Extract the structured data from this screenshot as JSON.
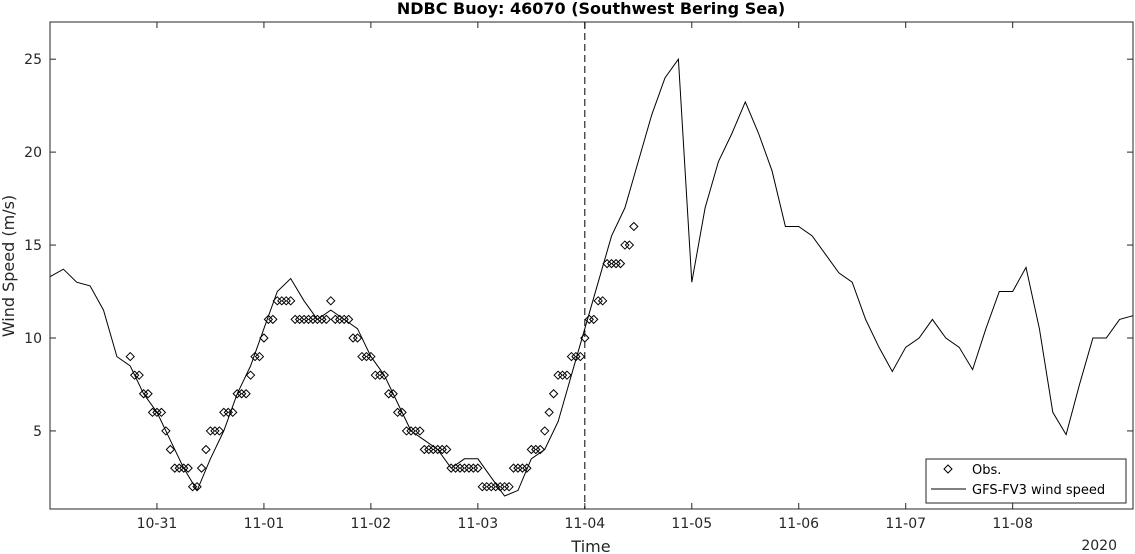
{
  "chart_data": {
    "type": "line",
    "title": "NDBC Buoy: 46070 (Southwest Bering Sea)",
    "xlabel": "Time",
    "ylabel": "Wind Speed (m/s)",
    "year_label": "2020",
    "xlim": [
      "2020-10-30 00:00",
      "2020-11-09 03:00"
    ],
    "ylim": [
      0.8,
      27
    ],
    "x_ticks": [
      "10-31",
      "11-01",
      "11-02",
      "11-03",
      "11-04",
      "11-05",
      "11-06",
      "11-07",
      "11-08"
    ],
    "y_ticks": [
      5,
      10,
      15,
      20,
      25
    ],
    "grid": false,
    "legend_position": "bottom-right",
    "vline": {
      "x": "2020-11-04 00:00",
      "style": "dashed"
    },
    "series": [
      {
        "name": "Obs.",
        "style": "open-diamond-markers",
        "color": "#000000",
        "x": [
          "2020-10-30 18:00",
          "2020-10-30 19:00",
          "2020-10-30 20:00",
          "2020-10-30 21:00",
          "2020-10-30 22:00",
          "2020-10-30 23:00",
          "2020-10-31 00:00",
          "2020-10-31 01:00",
          "2020-10-31 02:00",
          "2020-10-31 03:00",
          "2020-10-31 04:00",
          "2020-10-31 05:00",
          "2020-10-31 06:00",
          "2020-10-31 07:00",
          "2020-10-31 08:00",
          "2020-10-31 09:00",
          "2020-10-31 10:00",
          "2020-10-31 11:00",
          "2020-10-31 12:00",
          "2020-10-31 13:00",
          "2020-10-31 14:00",
          "2020-10-31 15:00",
          "2020-10-31 16:00",
          "2020-10-31 17:00",
          "2020-10-31 18:00",
          "2020-10-31 19:00",
          "2020-10-31 20:00",
          "2020-10-31 21:00",
          "2020-10-31 22:00",
          "2020-10-31 23:00",
          "2020-11-01 00:00",
          "2020-11-01 01:00",
          "2020-11-01 02:00",
          "2020-11-01 03:00",
          "2020-11-01 04:00",
          "2020-11-01 05:00",
          "2020-11-01 06:00",
          "2020-11-01 07:00",
          "2020-11-01 08:00",
          "2020-11-01 09:00",
          "2020-11-01 10:00",
          "2020-11-01 11:00",
          "2020-11-01 12:00",
          "2020-11-01 13:00",
          "2020-11-01 14:00",
          "2020-11-01 15:00",
          "2020-11-01 16:00",
          "2020-11-01 17:00",
          "2020-11-01 18:00",
          "2020-11-01 19:00",
          "2020-11-01 20:00",
          "2020-11-01 21:00",
          "2020-11-01 22:00",
          "2020-11-01 23:00",
          "2020-11-02 00:00",
          "2020-11-02 01:00",
          "2020-11-02 02:00",
          "2020-11-02 03:00",
          "2020-11-02 04:00",
          "2020-11-02 05:00",
          "2020-11-02 06:00",
          "2020-11-02 07:00",
          "2020-11-02 08:00",
          "2020-11-02 09:00",
          "2020-11-02 10:00",
          "2020-11-02 11:00",
          "2020-11-02 12:00",
          "2020-11-02 13:00",
          "2020-11-02 14:00",
          "2020-11-02 15:00",
          "2020-11-02 16:00",
          "2020-11-02 17:00",
          "2020-11-02 18:00",
          "2020-11-02 19:00",
          "2020-11-02 20:00",
          "2020-11-02 21:00",
          "2020-11-02 22:00",
          "2020-11-02 23:00",
          "2020-11-03 00:00",
          "2020-11-03 01:00",
          "2020-11-03 02:00",
          "2020-11-03 03:00",
          "2020-11-03 04:00",
          "2020-11-03 05:00",
          "2020-11-03 06:00",
          "2020-11-03 07:00",
          "2020-11-03 08:00",
          "2020-11-03 09:00",
          "2020-11-03 10:00",
          "2020-11-03 11:00",
          "2020-11-03 12:00",
          "2020-11-03 13:00",
          "2020-11-03 14:00",
          "2020-11-03 15:00",
          "2020-11-03 16:00",
          "2020-11-03 17:00",
          "2020-11-03 18:00",
          "2020-11-03 19:00",
          "2020-11-03 20:00",
          "2020-11-03 21:00",
          "2020-11-03 22:00",
          "2020-11-03 23:00",
          "2020-11-04 00:00",
          "2020-11-04 01:00",
          "2020-11-04 02:00",
          "2020-11-04 03:00",
          "2020-11-04 04:00",
          "2020-11-04 05:00",
          "2020-11-04 06:00",
          "2020-11-04 07:00",
          "2020-11-04 08:00",
          "2020-11-04 09:00",
          "2020-11-04 10:00",
          "2020-11-04 11:00"
        ],
        "y": [
          9,
          8,
          8,
          7,
          7,
          6,
          6,
          6,
          5,
          4,
          3,
          3,
          3,
          3,
          2,
          2,
          3,
          4,
          5,
          5,
          5,
          6,
          6,
          6,
          7,
          7,
          7,
          8,
          9,
          9,
          10,
          11,
          11,
          12,
          12,
          12,
          12,
          11,
          11,
          11,
          11,
          11,
          11,
          11,
          11,
          12,
          11,
          11,
          11,
          11,
          10,
          10,
          9,
          9,
          9,
          8,
          8,
          8,
          7,
          7,
          6,
          6,
          5,
          5,
          5,
          5,
          4,
          4,
          4,
          4,
          4,
          4,
          3,
          3,
          3,
          3,
          3,
          3,
          3,
          2,
          2,
          2,
          2,
          2,
          2,
          2,
          3,
          3,
          3,
          3,
          4,
          4,
          4,
          5,
          6,
          7,
          8,
          8,
          8,
          9,
          9,
          9,
          10,
          11,
          11,
          12,
          12,
          14,
          14,
          14,
          14,
          15,
          15,
          16
        ]
      },
      {
        "name": "GFS-FV3 wind speed",
        "style": "line",
        "color": "#000000",
        "x": [
          "2020-10-30 00:00",
          "2020-10-30 03:00",
          "2020-10-30 06:00",
          "2020-10-30 09:00",
          "2020-10-30 12:00",
          "2020-10-30 15:00",
          "2020-10-30 18:00",
          "2020-10-30 21:00",
          "2020-10-31 00:00",
          "2020-10-31 03:00",
          "2020-10-31 06:00",
          "2020-10-31 09:00",
          "2020-10-31 12:00",
          "2020-10-31 15:00",
          "2020-10-31 18:00",
          "2020-10-31 21:00",
          "2020-11-01 00:00",
          "2020-11-01 03:00",
          "2020-11-01 06:00",
          "2020-11-01 09:00",
          "2020-11-01 12:00",
          "2020-11-01 15:00",
          "2020-11-01 18:00",
          "2020-11-01 21:00",
          "2020-11-02 00:00",
          "2020-11-02 03:00",
          "2020-11-02 06:00",
          "2020-11-02 09:00",
          "2020-11-02 12:00",
          "2020-11-02 15:00",
          "2020-11-02 18:00",
          "2020-11-02 21:00",
          "2020-11-03 00:00",
          "2020-11-03 03:00",
          "2020-11-03 06:00",
          "2020-11-03 09:00",
          "2020-11-03 12:00",
          "2020-11-03 15:00",
          "2020-11-03 18:00",
          "2020-11-03 21:00",
          "2020-11-04 00:00",
          "2020-11-04 03:00",
          "2020-11-04 06:00",
          "2020-11-04 09:00",
          "2020-11-04 12:00",
          "2020-11-04 15:00",
          "2020-11-04 18:00",
          "2020-11-04 21:00",
          "2020-11-05 00:00",
          "2020-11-05 03:00",
          "2020-11-05 06:00",
          "2020-11-05 09:00",
          "2020-11-05 12:00",
          "2020-11-05 15:00",
          "2020-11-05 18:00",
          "2020-11-05 21:00",
          "2020-11-06 00:00",
          "2020-11-06 03:00",
          "2020-11-06 06:00",
          "2020-11-06 09:00",
          "2020-11-06 12:00",
          "2020-11-06 15:00",
          "2020-11-06 18:00",
          "2020-11-06 21:00",
          "2020-11-07 00:00",
          "2020-11-07 03:00",
          "2020-11-07 06:00",
          "2020-11-07 09:00",
          "2020-11-07 12:00",
          "2020-11-07 15:00",
          "2020-11-07 18:00",
          "2020-11-07 21:00",
          "2020-11-08 00:00",
          "2020-11-08 03:00",
          "2020-11-08 06:00",
          "2020-11-08 09:00",
          "2020-11-08 12:00",
          "2020-11-08 15:00",
          "2020-11-08 18:00",
          "2020-11-08 21:00",
          "2020-11-09 00:00",
          "2020-11-09 03:00"
        ],
        "y": [
          13.3,
          13.7,
          13.0,
          12.8,
          11.5,
          9.0,
          8.5,
          7.0,
          6.0,
          4.5,
          3.0,
          1.8,
          3.5,
          5.0,
          7.0,
          8.5,
          10.5,
          12.5,
          13.2,
          12.0,
          11.0,
          11.5,
          11.0,
          10.5,
          9.0,
          8.0,
          6.5,
          5.0,
          4.5,
          4.0,
          3.0,
          3.5,
          3.5,
          2.5,
          1.5,
          1.8,
          3.5,
          4.0,
          5.5,
          8.0,
          10.5,
          13.0,
          15.5,
          17.0,
          19.5,
          22.0,
          24.0,
          25.0,
          13.0,
          17.0,
          19.5,
          21.0,
          22.7,
          21.0,
          19.0,
          16.0,
          16.0,
          15.5,
          14.5,
          13.5,
          13.0,
          11.0,
          9.5,
          8.2,
          9.5,
          10.0,
          11.0,
          10.0,
          9.5,
          8.3,
          10.5,
          12.5,
          12.5,
          13.8,
          10.5,
          6.0,
          4.8,
          7.5,
          10.0,
          10.0,
          11.0,
          11.2
        ]
      }
    ]
  }
}
